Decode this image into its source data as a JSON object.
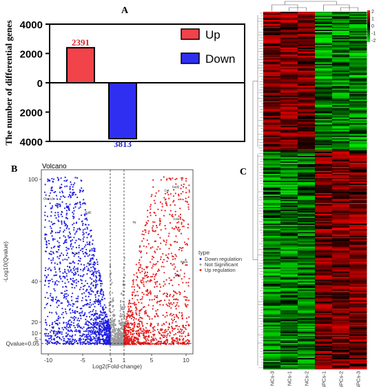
{
  "panels": {
    "a": "A",
    "b": "B",
    "c": "C"
  },
  "chart_data": [
    {
      "type": "bar",
      "panel": "A",
      "ylabel": "The number of differential genes",
      "categories": [
        "Up",
        "Down"
      ],
      "values": [
        2391,
        -3813
      ],
      "value_labels": [
        "2391",
        "3813"
      ],
      "yticks": [
        "4000",
        "2000",
        "0",
        "2000",
        "4000"
      ],
      "ylim": [
        -4000,
        4000
      ],
      "colors": {
        "Up": "#f2424a",
        "Down": "#2f2ff2",
        "label_up": "#e0282c",
        "label_down": "#2828c8"
      },
      "legend": {
        "position": "top-right",
        "entries": [
          "Up",
          "Down"
        ]
      }
    },
    {
      "type": "scatter",
      "panel": "B",
      "title": "Volcano",
      "xlabel": "Log2(Fold-change)",
      "ylabel": "-Log10(Qvalue)",
      "xticks": [
        "-10",
        "-5",
        "-1",
        "1",
        "5",
        "10"
      ],
      "yticks": [
        "100",
        "40",
        "20",
        "10",
        "5"
      ],
      "xlim": [
        -11,
        11
      ],
      "threshold_label": "Qvalue=0.05",
      "fc_thresholds": [
        -1,
        1
      ],
      "legend": {
        "title": "type",
        "entries": [
          "Down regulation",
          "Not Significant",
          "Up regulation"
        ],
        "position": "right"
      },
      "colors": {
        "down": "#1f1fe6",
        "ns": "#9a9a9a",
        "up": "#e61f1f"
      },
      "gene_labels": [
        {
          "name": "Clec12",
          "x": -10,
          "y": 88
        },
        {
          "name": "Fgf2",
          "x": -4.2,
          "y": 80
        },
        {
          "name": "Acta2",
          "x": -6,
          "y": 56
        },
        {
          "name": "Fn1",
          "x": -4,
          "y": 50
        },
        {
          "name": "Cat",
          "x": 7.2,
          "y": 93
        },
        {
          "name": "Sod2",
          "x": 8.5,
          "y": 95
        },
        {
          "name": "Tlr",
          "x": 2.5,
          "y": 74
        },
        {
          "name": "Ccl2",
          "x": 8.6,
          "y": 76
        },
        {
          "name": "Spp1",
          "x": 9.7,
          "y": 51
        },
        {
          "name": "Ilp1",
          "x": 8.9,
          "y": 43
        }
      ]
    },
    {
      "type": "heatmap",
      "panel": "C",
      "columns": [
        "NCs-3",
        "NCs-1",
        "NCs-2",
        "NPCs-1",
        "NPCs-2",
        "NPCs-3"
      ],
      "color_scale": {
        "ticks": [
          "2",
          "1",
          "0",
          "-1",
          "-2"
        ],
        "colors": [
          "#ff0000",
          "#000000",
          "#00ff00"
        ]
      },
      "blocks": [
        {
          "name": "upper",
          "fraction": 0.39,
          "NCs": "high",
          "NPCs": "low"
        },
        {
          "name": "lower",
          "fraction": 0.61,
          "NCs": "low",
          "NPCs": "high"
        }
      ]
    }
  ]
}
